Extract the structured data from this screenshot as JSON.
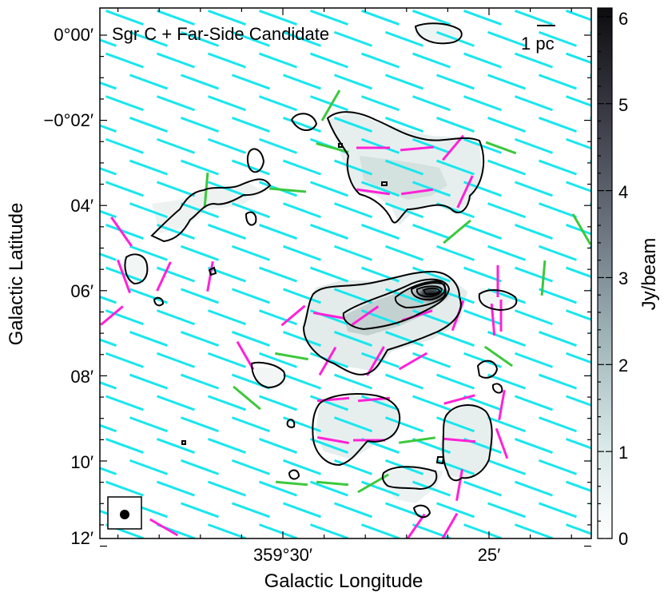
{
  "chart_data": {
    "type": "heatmap",
    "title": "Sgr C + Far-Side Candidate",
    "xlabel": "Galactic Longitude",
    "ylabel": "Galactic Latitude",
    "x_tick_labels": [
      "359°30′",
      "25′"
    ],
    "x_ticks_arcmin": [
      -30,
      -35
    ],
    "xlim_arcmin": [
      -24.5,
      -38.5
    ],
    "y_tick_labels": [
      "0°00′",
      "−0°02′",
      "04′",
      "06′",
      "08′",
      "10′",
      "12′"
    ],
    "y_ticks_arcmin": [
      0,
      -2,
      -4,
      -6,
      -8,
      -10,
      -12
    ],
    "ylim_arcmin": [
      -12,
      0.6
    ],
    "colorbar": {
      "label": "Jy/beam",
      "range": [
        0,
        6.1
      ],
      "tick_labels": [
        "0",
        "1",
        "2",
        "3",
        "4",
        "5",
        "6"
      ],
      "tick_values": [
        0,
        1,
        2,
        3,
        4,
        5,
        6
      ],
      "colormap": [
        "#ffffff",
        "#d7e7e7",
        "#9fb4b8",
        "#6c7580",
        "#3a3a45",
        "#0d0d10"
      ]
    },
    "scale_bar_label": "1 pc",
    "beam_marker": "filled-circle",
    "vector_colors": {
      "background": "#19e6ee",
      "sample_a": "#ff21d6",
      "sample_b": "#3cc83c"
    },
    "contour_color": "#000000",
    "emission_peak": {
      "lon_arcmin": -33.1,
      "lat_arcmin": -6.2,
      "value": 6.0
    }
  }
}
